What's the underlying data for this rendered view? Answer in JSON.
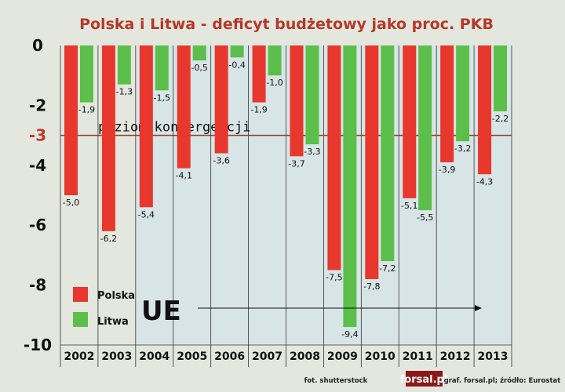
{
  "chart_data": {
    "type": "bar",
    "title": "Polska i Litwa - deficyt budżetowy jako proc. PKB",
    "categories": [
      "2002",
      "2003",
      "2004",
      "2005",
      "2006",
      "2007",
      "2008",
      "2009",
      "2010",
      "2011",
      "2012",
      "2013"
    ],
    "series": [
      {
        "name": "Polska",
        "color": "#e8372c",
        "values": [
          -5.0,
          -6.2,
          -5.4,
          -4.1,
          -3.6,
          -1.9,
          -3.7,
          -7.5,
          -7.8,
          -5.1,
          -3.9,
          -4.3
        ],
        "labels": [
          "-5,0",
          "-6,2",
          "-5,4",
          "-4,1",
          "-3,6",
          "-1,9",
          "-3,7",
          "-7,5",
          "-7,8",
          "-5,1",
          "-3,9",
          "-4,3"
        ]
      },
      {
        "name": "Litwa",
        "color": "#5cbf4b",
        "values": [
          -1.9,
          -1.3,
          -1.5,
          -0.5,
          -0.4,
          -1.0,
          -3.3,
          -9.4,
          -7.2,
          -5.5,
          -3.2,
          -2.2
        ],
        "labels": [
          "-1,9",
          "-1,3",
          "-1,5",
          "-0,5",
          "-0,4",
          "-1,0",
          "-3,3",
          "-9,4",
          "-7,2",
          "-5,5",
          "-3,2",
          "-2,2"
        ]
      }
    ],
    "ylim": [
      -10,
      0
    ],
    "yticks": [
      0,
      -2,
      -4,
      -6,
      -8,
      -10
    ],
    "ytick_labels": [
      "0",
      "-2",
      "-4",
      "-6",
      "-8",
      "-10"
    ],
    "reference_line": {
      "value": -3,
      "tick_label": "-3",
      "label": "poziom konwergencji",
      "color": "#8b3a1a"
    },
    "annotation": {
      "text": "UE",
      "from_category": "2004",
      "arrow": "right"
    },
    "legend": {
      "placement": "bottom-left"
    },
    "grid": "vertical-category-dividers"
  },
  "footer": {
    "photo_credit": "fot. shutterstock",
    "brand": "forsal.pl",
    "source": "graf. forsal.pl; źródło: Eurostat"
  }
}
